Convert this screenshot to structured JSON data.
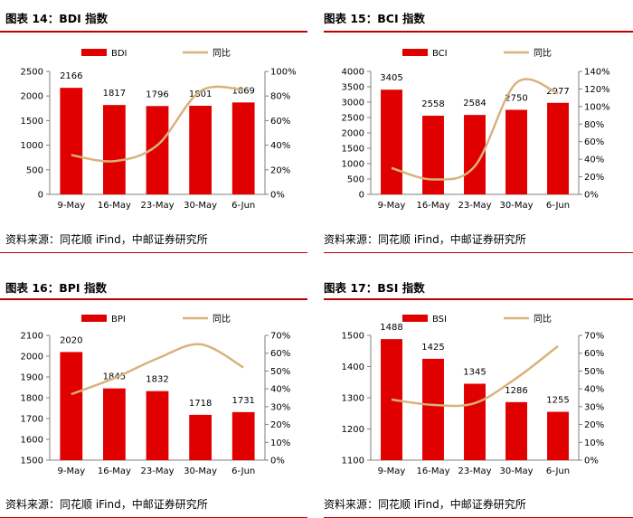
{
  "source_text": "资料来源：同花顺 iFind，中邮证券研究所",
  "colors": {
    "bar": "#e00000",
    "line": "#d9b27c",
    "accent_rule": "#c00000",
    "axis": "#7f7f7f"
  },
  "chart_data": [
    {
      "type": "bar",
      "title": "图表 14：BDI 指数",
      "categories": [
        "9-May",
        "16-May",
        "23-May",
        "30-May",
        "6-Jun"
      ],
      "series": [
        {
          "name": "BDI",
          "kind": "bar",
          "axis": "left",
          "values": [
            2166,
            1817,
            1796,
            1801,
            1869
          ]
        },
        {
          "name": "同比",
          "kind": "line",
          "axis": "right",
          "values": [
            32,
            27,
            40,
            84,
            85
          ]
        }
      ],
      "value_labels": [
        "2166",
        "1817",
        "1796",
        "1801",
        "1869"
      ],
      "left_ticks": [
        "0",
        "500",
        "1000",
        "1500",
        "2000",
        "2500"
      ],
      "right_ticks": [
        "0%",
        "20%",
        "40%",
        "60%",
        "80%",
        "100%"
      ],
      "ylim": [
        0,
        2500
      ],
      "y2lim": [
        0,
        100
      ],
      "legend": "top"
    },
    {
      "type": "bar",
      "title": "图表 15：BCI 指数",
      "categories": [
        "9-May",
        "16-May",
        "23-May",
        "30-May",
        "6-Jun"
      ],
      "series": [
        {
          "name": "BCI",
          "kind": "bar",
          "axis": "left",
          "values": [
            3405,
            2558,
            2584,
            2750,
            2977
          ]
        },
        {
          "name": "同比",
          "kind": "line",
          "axis": "right",
          "values": [
            30,
            17,
            32,
            127,
            115
          ]
        }
      ],
      "value_labels": [
        "3405",
        "2558",
        "2584",
        "2750",
        "2977"
      ],
      "left_ticks": [
        "0",
        "500",
        "1000",
        "1500",
        "2000",
        "2500",
        "3000",
        "3500",
        "4000"
      ],
      "right_ticks": [
        "0%",
        "20%",
        "40%",
        "60%",
        "80%",
        "100%",
        "120%",
        "140%"
      ],
      "ylim": [
        0,
        4000
      ],
      "y2lim": [
        0,
        140
      ],
      "legend": "top"
    },
    {
      "type": "bar",
      "title": "图表 16：BPI 指数",
      "categories": [
        "9-May",
        "16-May",
        "23-May",
        "30-May",
        "6-Jun"
      ],
      "series": [
        {
          "name": "BPI",
          "kind": "bar",
          "axis": "left",
          "values": [
            2020,
            1845,
            1832,
            1718,
            1731
          ]
        },
        {
          "name": "同比",
          "kind": "line",
          "axis": "right",
          "values": [
            37,
            46,
            57,
            65,
            52
          ]
        }
      ],
      "value_labels": [
        "2020",
        "1845",
        "1832",
        "1718",
        "1731"
      ],
      "left_ticks": [
        "1500",
        "1600",
        "1700",
        "1800",
        "1900",
        "2000",
        "2100"
      ],
      "right_ticks": [
        "0%",
        "10%",
        "20%",
        "30%",
        "40%",
        "50%",
        "60%",
        "70%"
      ],
      "ylim": [
        1500,
        2100
      ],
      "y2lim": [
        0,
        70
      ],
      "legend": "top"
    },
    {
      "type": "bar",
      "title": "图表 17：BSI 指数",
      "categories": [
        "9-May",
        "16-May",
        "23-May",
        "30-May",
        "6-Jun"
      ],
      "series": [
        {
          "name": "BSI",
          "kind": "bar",
          "axis": "left",
          "values": [
            1488,
            1425,
            1345,
            1286,
            1255
          ]
        },
        {
          "name": "同比",
          "kind": "line",
          "axis": "right",
          "values": [
            34,
            31,
            32,
            46,
            64
          ]
        }
      ],
      "value_labels": [
        "1488",
        "1425",
        "1345",
        "1286",
        "1255"
      ],
      "left_ticks": [
        "1100",
        "1200",
        "1300",
        "1400",
        "1500"
      ],
      "right_ticks": [
        "0%",
        "10%",
        "20%",
        "30%",
        "40%",
        "50%",
        "60%",
        "70%"
      ],
      "ylim": [
        1100,
        1500
      ],
      "y2lim": [
        0,
        70
      ],
      "legend": "top"
    }
  ]
}
